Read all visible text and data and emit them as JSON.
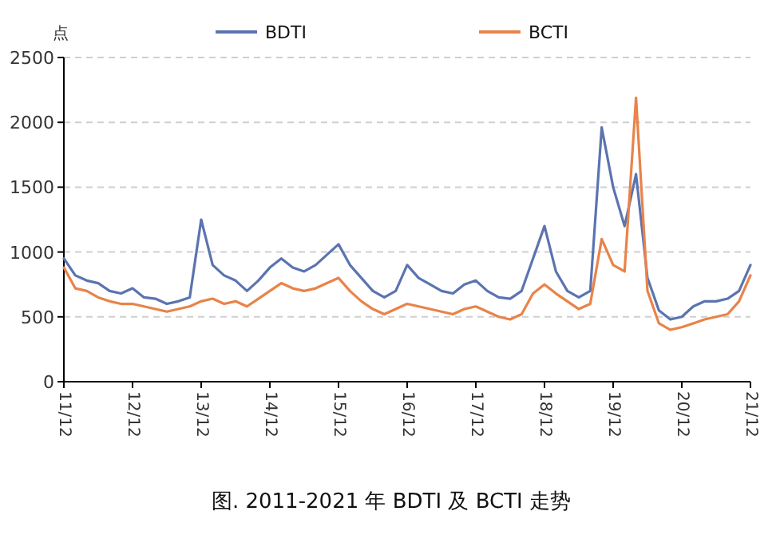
{
  "chart_data": {
    "type": "line",
    "title": "图. 2011-2021 年 BDTI 及 BCTI 走势",
    "ylabel": "点",
    "x": [
      "2011-12",
      "2012-02",
      "2012-04",
      "2012-06",
      "2012-08",
      "2012-10",
      "2012-12",
      "2013-02",
      "2013-04",
      "2013-06",
      "2013-08",
      "2013-10",
      "2013-12",
      "2014-02",
      "2014-04",
      "2014-06",
      "2014-08",
      "2014-10",
      "2014-12",
      "2015-02",
      "2015-04",
      "2015-06",
      "2015-08",
      "2015-10",
      "2015-12",
      "2016-02",
      "2016-04",
      "2016-06",
      "2016-08",
      "2016-10",
      "2016-12",
      "2017-02",
      "2017-04",
      "2017-06",
      "2017-08",
      "2017-10",
      "2017-12",
      "2018-02",
      "2018-04",
      "2018-06",
      "2018-08",
      "2018-10",
      "2018-12",
      "2019-02",
      "2019-04",
      "2019-06",
      "2019-08",
      "2019-10",
      "2019-12",
      "2020-02",
      "2020-04",
      "2020-06",
      "2020-08",
      "2020-10",
      "2020-12",
      "2021-02",
      "2021-04",
      "2021-06",
      "2021-08",
      "2021-10",
      "2021-12"
    ],
    "series": [
      {
        "name": "BDTI",
        "color": "#5b74b0",
        "values": [
          950,
          820,
          780,
          760,
          700,
          680,
          720,
          650,
          640,
          600,
          620,
          650,
          1250,
          900,
          820,
          780,
          700,
          780,
          880,
          950,
          880,
          850,
          900,
          980,
          1060,
          900,
          800,
          700,
          650,
          700,
          900,
          800,
          750,
          700,
          680,
          750,
          780,
          700,
          650,
          640,
          700,
          950,
          1200,
          850,
          700,
          650,
          700,
          1960,
          1500,
          1200,
          1600,
          800,
          550,
          480,
          500,
          580,
          620,
          620,
          640,
          700,
          900
        ]
      },
      {
        "name": "BCTI",
        "color": "#e8834a",
        "values": [
          880,
          720,
          700,
          650,
          620,
          600,
          600,
          580,
          560,
          540,
          560,
          580,
          620,
          640,
          600,
          620,
          580,
          640,
          700,
          760,
          720,
          700,
          720,
          760,
          800,
          700,
          620,
          560,
          520,
          560,
          600,
          580,
          560,
          540,
          520,
          560,
          580,
          540,
          500,
          480,
          520,
          680,
          750,
          680,
          620,
          560,
          600,
          1100,
          900,
          850,
          2190,
          700,
          450,
          400,
          420,
          450,
          480,
          500,
          520,
          620,
          820
        ]
      }
    ],
    "xlim": [
      "2011-12",
      "2021-12"
    ],
    "xticks": [
      {
        "value": "2011-12",
        "label": "11/12"
      },
      {
        "value": "2012-12",
        "label": "12/12"
      },
      {
        "value": "2013-12",
        "label": "13/12"
      },
      {
        "value": "2014-12",
        "label": "14/12"
      },
      {
        "value": "2015-12",
        "label": "15/12"
      },
      {
        "value": "2016-12",
        "label": "16/12"
      },
      {
        "value": "2017-12",
        "label": "17/12"
      },
      {
        "value": "2018-12",
        "label": "18/12"
      },
      {
        "value": "2019-12",
        "label": "19/12"
      },
      {
        "value": "2020-12",
        "label": "20/12"
      },
      {
        "value": "2021-12",
        "label": "21/12"
      }
    ],
    "ylim": [
      0,
      2500
    ],
    "yticks": [
      0,
      500,
      1000,
      1500,
      2000,
      2500
    ],
    "grid": "y",
    "legend": "top"
  }
}
